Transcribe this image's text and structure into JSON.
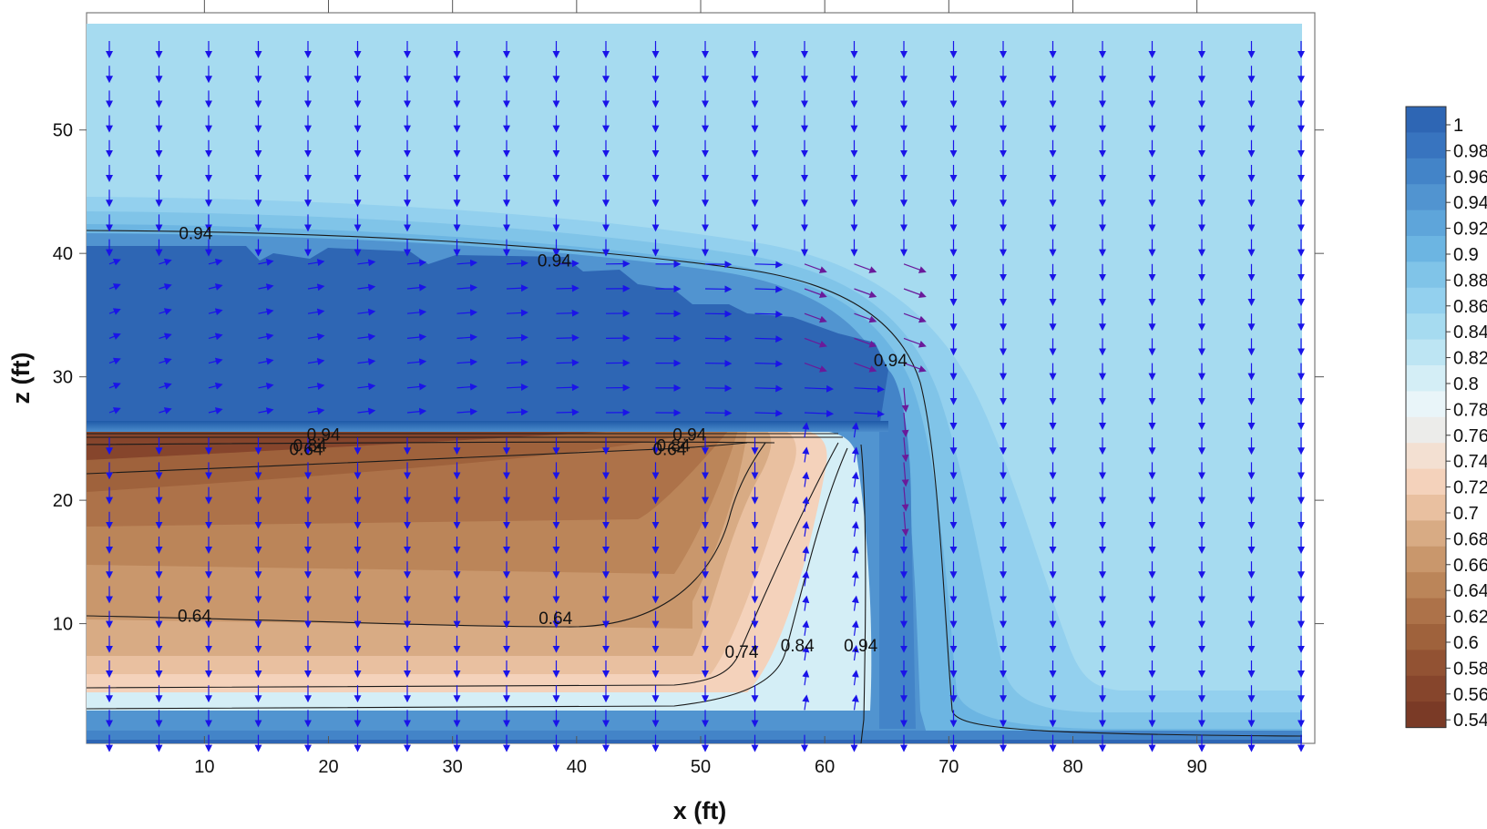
{
  "chart_data": {
    "type": "contour",
    "xlabel": "x (ft)",
    "ylabel": "z (ft)",
    "xlim": [
      0.5,
      99.5
    ],
    "ylim": [
      0.3,
      59.5
    ],
    "x_ticks": [
      10,
      20,
      30,
      40,
      50,
      60,
      70,
      80,
      90
    ],
    "y_ticks": [
      10,
      20,
      30,
      40,
      50
    ],
    "colorbar": {
      "levels": [
        1,
        0.98,
        0.96,
        0.94,
        0.92,
        0.9,
        0.88,
        0.86,
        0.84,
        0.82,
        0.8,
        0.78,
        0.76,
        0.74,
        0.72,
        0.7,
        0.68,
        0.66,
        0.64,
        0.62,
        0.6,
        0.58,
        0.56,
        0.54
      ],
      "labels": [
        "1",
        "0.98",
        "0.96",
        "0.94",
        "0.92",
        "0.9",
        "0.88",
        "0.86",
        "0.84",
        "0.82",
        "0.8",
        "0.78",
        "0.76",
        "0.74",
        "0.72",
        "0.7",
        "0.68",
        "0.66",
        "0.64",
        "0.62",
        "0.6",
        "0.58",
        "0.56",
        "0.54"
      ],
      "colors": [
        "#2e66b4",
        "#3874bf",
        "#4384c8",
        "#5194d0",
        "#5ea5da",
        "#6cb5e2",
        "#80c4e8",
        "#93d0ee",
        "#a6dbf0",
        "#bde5f3",
        "#d4eef6",
        "#e9f5f9",
        "#ececea",
        "#f3e0d2",
        "#f4d2bb",
        "#e9c0a0",
        "#d8ab84",
        "#c9976c",
        "#bb8559",
        "#ad7249",
        "#9f623c",
        "#925233",
        "#86452c",
        "#7a3a26"
      ]
    },
    "contour_labels": [
      {
        "text": "0.94",
        "x": 9.3,
        "z": 41.6
      },
      {
        "text": "0.94",
        "x": 38.2,
        "z": 39.4
      },
      {
        "text": "0.94",
        "x": 65.3,
        "z": 31.3
      },
      {
        "text": "0.94",
        "x": 19.6,
        "z": 25.3
      },
      {
        "text": "0.84",
        "x": 18.5,
        "z": 24.4
      },
      {
        "text": "0.64",
        "x": 18.2,
        "z": 24.1
      },
      {
        "text": "0.94",
        "x": 49.1,
        "z": 25.3
      },
      {
        "text": "0.84",
        "x": 47.8,
        "z": 24.4
      },
      {
        "text": "0.64",
        "x": 47.5,
        "z": 24.1
      },
      {
        "text": "0.64",
        "x": 9.2,
        "z": 10.6
      },
      {
        "text": "0.64",
        "x": 38.3,
        "z": 10.4
      },
      {
        "text": "0.74",
        "x": 53.3,
        "z": 7.7
      },
      {
        "text": "0.84",
        "x": 57.8,
        "z": 8.2
      },
      {
        "text": "0.94",
        "x": 62.9,
        "z": 8.2
      }
    ]
  }
}
